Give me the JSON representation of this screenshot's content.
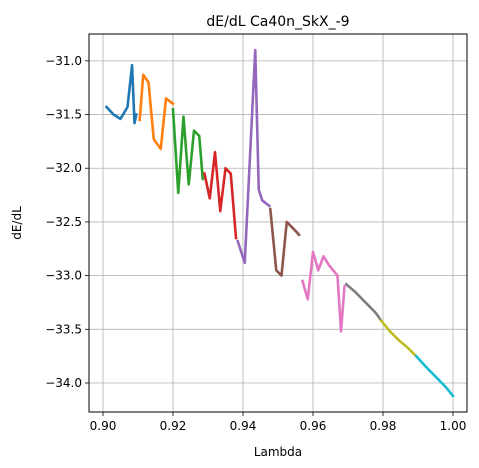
{
  "chart_data": {
    "type": "line",
    "title": "dE/dL Ca40n_SkX_-9",
    "xlabel": "Lambda",
    "ylabel": "dE/dL",
    "xlim": [
      0.896,
      1.004
    ],
    "ylim": [
      -34.27,
      -30.75
    ],
    "grid": true,
    "xticks": [
      0.9,
      0.92,
      0.94,
      0.96,
      0.98,
      1.0
    ],
    "xtick_labels": [
      "0.90",
      "0.92",
      "0.94",
      "0.96",
      "0.98",
      "1.00"
    ],
    "yticks": [
      -31.0,
      -31.5,
      -32.0,
      -32.5,
      -33.0,
      -33.5,
      -34.0
    ],
    "ytick_labels": [
      "−31.0",
      "−31.5",
      "−32.0",
      "−32.5",
      "−33.0",
      "−33.5",
      "−34.0"
    ],
    "series": [
      {
        "color": "#1f77b4",
        "x": [
          0.901,
          0.903,
          0.905,
          0.907,
          0.9083,
          0.909,
          0.9095
        ],
        "y": [
          -31.43,
          -31.5,
          -31.54,
          -31.43,
          -31.04,
          -31.58,
          -31.5
        ]
      },
      {
        "color": "#ff7f0e",
        "x": [
          0.9105,
          0.9115,
          0.913,
          0.9145,
          0.9165,
          0.918,
          0.92
        ],
        "y": [
          -31.55,
          -31.13,
          -31.2,
          -31.73,
          -31.82,
          -31.35,
          -31.4
        ]
      },
      {
        "color": "#2ca02c",
        "x": [
          0.92,
          0.9215,
          0.923,
          0.9245,
          0.926,
          0.9275,
          0.9285
        ],
        "y": [
          -31.45,
          -32.23,
          -31.52,
          -32.15,
          -31.65,
          -31.7,
          -32.1
        ]
      },
      {
        "color": "#d62728",
        "x": [
          0.929,
          0.9305,
          0.932,
          0.9335,
          0.935,
          0.9365,
          0.938
        ],
        "y": [
          -32.05,
          -32.28,
          -31.85,
          -32.4,
          -32.0,
          -32.05,
          -32.65
        ]
      },
      {
        "color": "#9467bd",
        "x": [
          0.9385,
          0.9405,
          0.9435,
          0.9445,
          0.9455,
          0.9475
        ],
        "y": [
          -32.68,
          -32.88,
          -30.9,
          -32.2,
          -32.3,
          -32.35
        ]
      },
      {
        "color": "#8c564b",
        "x": [
          0.9478,
          0.9495,
          0.951,
          0.9525,
          0.954,
          0.9555,
          0.956
        ],
        "y": [
          -32.38,
          -32.95,
          -33.0,
          -32.5,
          -32.55,
          -32.6,
          -32.62
        ]
      },
      {
        "color": "#e377c2",
        "x": [
          0.957,
          0.9585,
          0.96,
          0.9615,
          0.963,
          0.9645,
          0.967,
          0.968,
          0.969
        ],
        "y": [
          -33.05,
          -33.22,
          -32.78,
          -32.95,
          -32.82,
          -32.9,
          -33.0,
          -33.52,
          -33.1
        ]
      },
      {
        "color": "#7f7f7f",
        "x": [
          0.9695,
          0.972,
          0.975,
          0.978,
          0.9795
        ],
        "y": [
          -33.08,
          -33.15,
          -33.25,
          -33.35,
          -33.42
        ]
      },
      {
        "color": "#bcbd22",
        "x": [
          0.9795,
          0.982,
          0.9845,
          0.987,
          0.9895
        ],
        "y": [
          -33.42,
          -33.52,
          -33.6,
          -33.67,
          -33.75
        ]
      },
      {
        "color": "#17becf",
        "x": [
          0.9895,
          0.992,
          0.995,
          0.998,
          1.0
        ],
        "y": [
          -33.75,
          -33.84,
          -33.94,
          -34.04,
          -34.12
        ]
      }
    ]
  }
}
